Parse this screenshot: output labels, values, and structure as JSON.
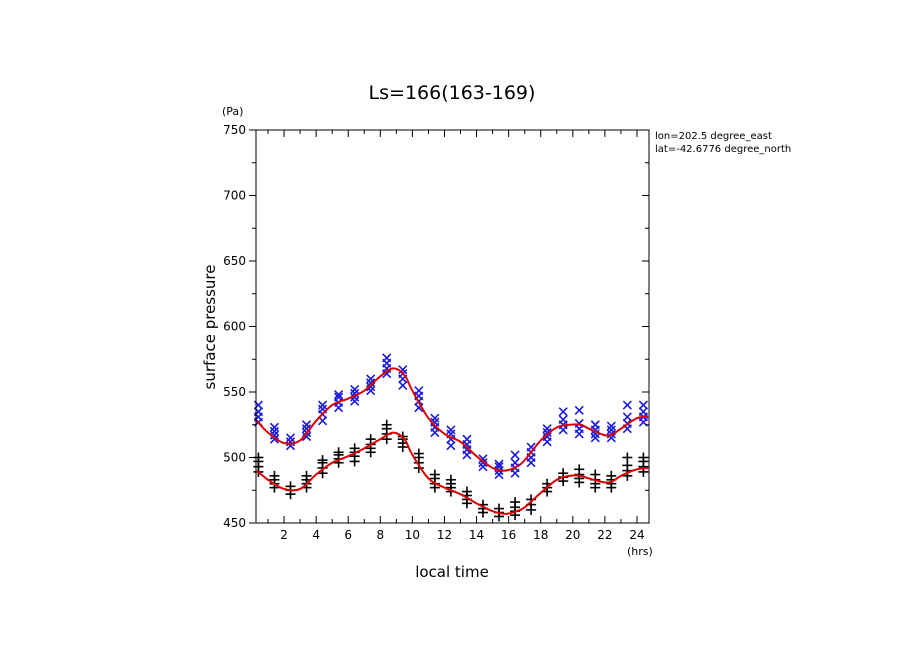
{
  "chart_data": {
    "type": "scatter",
    "title": "Ls=166(163-169)",
    "xlabel": "local time",
    "ylabel": "surface pressure",
    "x_unit": "(hrs)",
    "y_unit": "(Pa)",
    "info_lines": [
      "lon=202.5 degree_east",
      "lat=-42.6776 degree_north"
    ],
    "xlim": [
      0.25,
      24.75
    ],
    "ylim": [
      450,
      750
    ],
    "x_ticks": [
      2,
      4,
      6,
      8,
      10,
      12,
      14,
      16,
      18,
      20,
      22,
      24
    ],
    "y_ticks": [
      450,
      500,
      550,
      600,
      650,
      700,
      750
    ],
    "grid": false,
    "series": [
      {
        "marker": "x",
        "color": "#1a1adb",
        "points": [
          {
            "x": 0.4,
            "y": [
              527,
              531,
              535,
              540
            ]
          },
          {
            "x": 1.4,
            "y": [
              514,
              517,
              520,
              523
            ]
          },
          {
            "x": 2.4,
            "y": [
              509,
              512,
              515
            ]
          },
          {
            "x": 3.4,
            "y": [
              516,
              519,
              522,
              525
            ]
          },
          {
            "x": 4.4,
            "y": [
              528,
              533,
              537,
              540
            ]
          },
          {
            "x": 5.4,
            "y": [
              538,
              542,
              546,
              548
            ]
          },
          {
            "x": 6.4,
            "y": [
              543,
              546,
              549,
              552
            ]
          },
          {
            "x": 7.4,
            "y": [
              551,
              554,
              557,
              560
            ]
          },
          {
            "x": 8.4,
            "y": [
              564,
              568,
              572,
              576
            ]
          },
          {
            "x": 9.4,
            "y": [
              555,
              560,
              564,
              567
            ]
          },
          {
            "x": 10.4,
            "y": [
              538,
              543,
              547,
              551
            ]
          },
          {
            "x": 11.4,
            "y": [
              519,
              523,
              527,
              530
            ]
          },
          {
            "x": 12.4,
            "y": [
              509,
              514,
              518,
              521
            ]
          },
          {
            "x": 13.4,
            "y": [
              502,
              506,
              510,
              514
            ]
          },
          {
            "x": 14.4,
            "y": [
              493,
              496,
              499
            ]
          },
          {
            "x": 15.4,
            "y": [
              487,
              490,
              493,
              495
            ]
          },
          {
            "x": 16.4,
            "y": [
              488,
              492,
              496,
              502
            ]
          },
          {
            "x": 17.4,
            "y": [
              496,
              500,
              504,
              508
            ]
          },
          {
            "x": 18.4,
            "y": [
              512,
              516,
              519,
              522
            ]
          },
          {
            "x": 19.4,
            "y": [
              521,
              525,
              529,
              535
            ]
          },
          {
            "x": 20.4,
            "y": [
              518,
              522,
              526,
              536
            ]
          },
          {
            "x": 21.4,
            "y": [
              515,
              518,
              521,
              525
            ]
          },
          {
            "x": 22.4,
            "y": [
              515,
              518,
              521,
              524
            ]
          },
          {
            "x": 23.4,
            "y": [
              522,
              526,
              531,
              540
            ]
          },
          {
            "x": 24.4,
            "y": [
              527,
              531,
              535,
              540
            ]
          }
        ]
      },
      {
        "marker": "+",
        "color": "#000000",
        "points": [
          {
            "x": 0.4,
            "y": [
              489,
              493,
              497,
              500
            ]
          },
          {
            "x": 1.4,
            "y": [
              477,
              480,
              483,
              486
            ]
          },
          {
            "x": 2.4,
            "y": [
              472,
              475,
              478
            ]
          },
          {
            "x": 3.4,
            "y": [
              477,
              480,
              483,
              486
            ]
          },
          {
            "x": 4.4,
            "y": [
              488,
              492,
              496,
              498
            ]
          },
          {
            "x": 5.4,
            "y": [
              496,
              499,
              502,
              504
            ]
          },
          {
            "x": 6.4,
            "y": [
              497,
              501,
              504,
              507
            ]
          },
          {
            "x": 7.4,
            "y": [
              504,
              507,
              510,
              514
            ]
          },
          {
            "x": 8.4,
            "y": [
              514,
              518,
              522,
              525
            ]
          },
          {
            "x": 9.4,
            "y": [
              508,
              511,
              514,
              516
            ]
          },
          {
            "x": 10.4,
            "y": [
              492,
              496,
              500,
              503
            ]
          },
          {
            "x": 11.4,
            "y": [
              477,
              480,
              484,
              487
            ]
          },
          {
            "x": 12.4,
            "y": [
              474,
              477,
              480,
              483
            ]
          },
          {
            "x": 13.4,
            "y": [
              465,
              468,
              471,
              474
            ]
          },
          {
            "x": 14.4,
            "y": [
              458,
              461,
              464
            ]
          },
          {
            "x": 15.4,
            "y": [
              455,
              458,
              461
            ]
          },
          {
            "x": 16.4,
            "y": [
              456,
              459,
              462,
              466
            ]
          },
          {
            "x": 17.4,
            "y": [
              460,
              464,
              468
            ]
          },
          {
            "x": 18.4,
            "y": [
              474,
              477,
              480
            ]
          },
          {
            "x": 19.4,
            "y": [
              482,
              485,
              488
            ]
          },
          {
            "x": 20.4,
            "y": [
              481,
              484,
              487,
              491
            ]
          },
          {
            "x": 21.4,
            "y": [
              477,
              480,
              483,
              487
            ]
          },
          {
            "x": 22.4,
            "y": [
              477,
              480,
              483,
              486
            ]
          },
          {
            "x": 23.4,
            "y": [
              486,
              490,
              494,
              500
            ]
          },
          {
            "x": 24.4,
            "y": [
              489,
              493,
              497,
              500
            ]
          }
        ]
      }
    ],
    "fit_lines": [
      {
        "color": "#dd0000",
        "x": [
          0.3,
          1,
          2,
          3,
          4,
          5,
          6,
          7,
          8,
          8.8,
          9.5,
          10,
          11,
          12,
          13,
          14,
          15,
          15.8,
          16.5,
          17,
          18,
          19,
          19.8,
          20.5,
          21,
          22,
          22.5,
          23,
          24,
          24.7
        ],
        "y": [
          528,
          519,
          511,
          513,
          528,
          540,
          545,
          551,
          562,
          568,
          563,
          551,
          530,
          518,
          512,
          501,
          492,
          490,
          493,
          498,
          513,
          523,
          525,
          525,
          522,
          517,
          518,
          522,
          530,
          531
        ]
      },
      {
        "color": "#dd0000",
        "x": [
          0.3,
          1,
          2,
          3,
          4,
          5,
          6,
          7,
          8,
          8.8,
          9.5,
          10,
          11,
          12,
          13,
          14,
          15,
          15.8,
          16.5,
          17,
          18,
          19,
          19.8,
          20.5,
          21,
          22,
          22.5,
          23,
          24,
          24.7
        ],
        "y": [
          490,
          483,
          476,
          476,
          487,
          496,
          501,
          507,
          514,
          519,
          514,
          502,
          484,
          477,
          472,
          465,
          459,
          457,
          459,
          462,
          473,
          483,
          486,
          486,
          484,
          481,
          482,
          486,
          491,
          492
        ]
      }
    ]
  }
}
